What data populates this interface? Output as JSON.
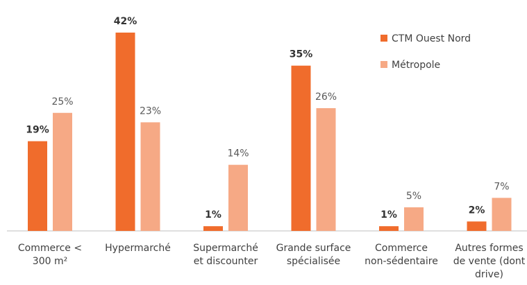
{
  "chart_data": {
    "type": "bar",
    "categories": [
      [
        "Commerce <",
        "300 m²"
      ],
      [
        "Hypermarché"
      ],
      [
        "Supermarché",
        "et discounter"
      ],
      [
        "Grande surface",
        "spécialisée"
      ],
      [
        "Commerce",
        "non-sédentaire"
      ],
      [
        "Autres formes",
        "de vente (dont",
        "drive)"
      ]
    ],
    "series": [
      {
        "name": "CTM Ouest Nord",
        "color": "#f06c2c",
        "values": [
          19,
          42,
          1,
          35,
          1,
          2
        ],
        "value_labels": [
          "19%",
          "42%",
          "1%",
          "35%",
          "1%",
          "2%"
        ]
      },
      {
        "name": "Métropole",
        "color": "#f6a985",
        "values": [
          25,
          23,
          14,
          26,
          5,
          7
        ],
        "value_labels": [
          "25%",
          "23%",
          "14%",
          "26%",
          "5%",
          "7%"
        ]
      }
    ],
    "legend": "top-right"
  }
}
